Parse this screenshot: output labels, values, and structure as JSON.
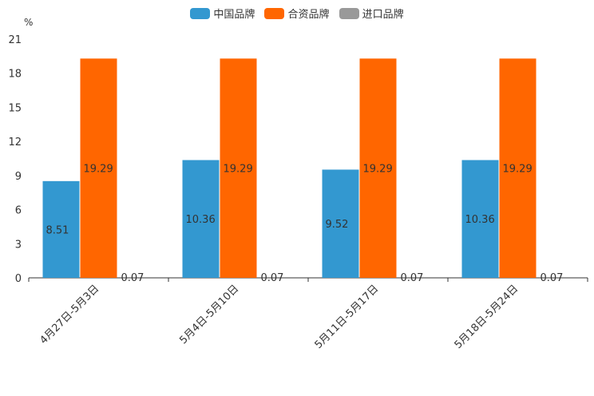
{
  "chart_data": {
    "type": "bar",
    "unit_label": "%",
    "categories": [
      "4月27日-5月3日",
      "5月4日-5月10日",
      "5月11日-5月17日",
      "5月18日-5月24日"
    ],
    "series": [
      {
        "name": "中国品牌",
        "color": "#3398d0",
        "values": [
          8.51,
          10.36,
          9.52,
          10.36
        ],
        "labels": [
          "8.51",
          "10.36",
          "9.52",
          "10.36"
        ]
      },
      {
        "name": "合资品牌",
        "color": "#ff6600",
        "values": [
          19.29,
          19.29,
          19.29,
          19.29
        ],
        "labels": [
          "19.29",
          "19.29",
          "19.29",
          "19.29"
        ]
      },
      {
        "name": "进口品牌",
        "color": "#999999",
        "values": [
          0.07,
          0.07,
          0.07,
          0.07
        ],
        "labels": [
          "0.07",
          "0.07",
          "0.07",
          "0.07"
        ]
      }
    ],
    "y_ticks": [
      "0",
      "3",
      "6",
      "9",
      "12",
      "15",
      "18",
      "21"
    ],
    "ylim": [
      0,
      21
    ],
    "legend_position": "top-center",
    "grid": false
  }
}
